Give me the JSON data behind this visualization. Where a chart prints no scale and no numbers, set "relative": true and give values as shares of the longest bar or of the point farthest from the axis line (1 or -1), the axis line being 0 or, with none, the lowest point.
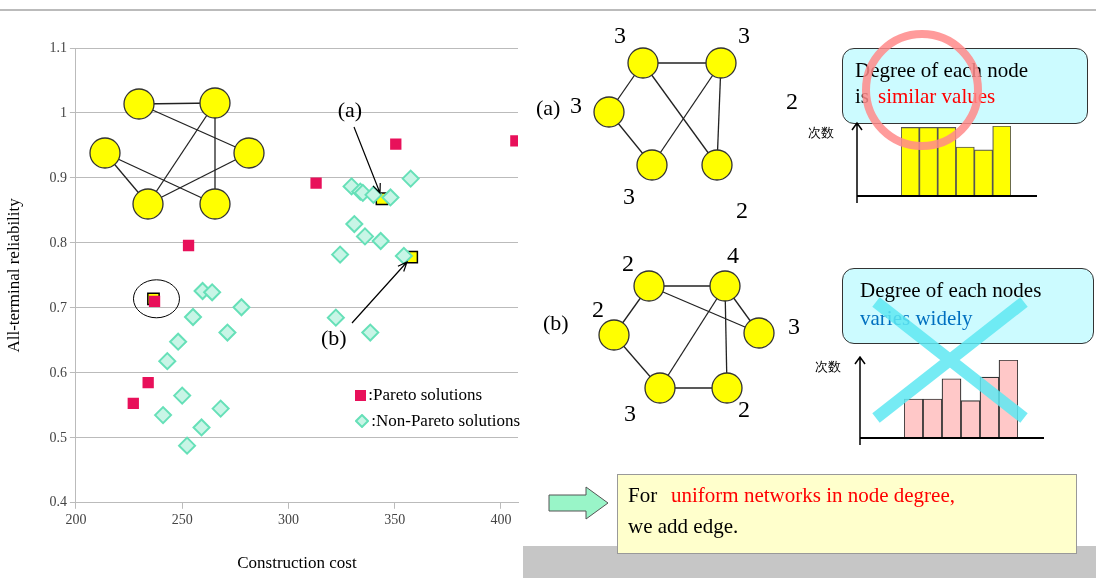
{
  "chart_data": [
    {
      "type": "scatter",
      "xlabel": "Construction cost",
      "ylabel": "All-terminal reliability",
      "xlim": [
        200,
        408
      ],
      "ylim": [
        0.4,
        1.1
      ],
      "xticks": [
        200,
        250,
        300,
        350,
        400
      ],
      "yticks": [
        0.4,
        0.5,
        0.6,
        0.7,
        0.8,
        0.9,
        1,
        1.1
      ],
      "grid": "y",
      "legend": "bottom right",
      "series": [
        {
          "name": ":Pareto solutions",
          "color": "#e8105a",
          "marker": "square",
          "x": [
            227,
            234,
            237,
            253,
            313,
            350.5,
            407
          ],
          "values": [
            0.553,
            0.585,
            0.71,
            0.796,
            0.892,
            0.952,
            0.957
          ]
        },
        {
          "name": ":Non-Pareto solutions",
          "color": "#66e0b8",
          "marker": "diamond",
          "x": [
            329.7,
            333.8,
            335,
            340,
            348,
            357.5,
            331,
            336,
            343.4,
            324.3,
            354.3,
            259.6,
            264.1,
            277.9,
            255.1,
            271.3,
            322.3,
            338.5,
            248.1,
            243,
            250,
            241,
            268.1,
            259.1,
            252.3
          ],
          "values": [
            0.887,
            0.879,
            0.877,
            0.874,
            0.87,
            0.899,
            0.829,
            0.81,
            0.803,
            0.782,
            0.78,
            0.726,
            0.724,
            0.701,
            0.686,
            0.662,
            0.685,
            0.662,
            0.648,
            0.618,
            0.565,
            0.535,
            0.545,
            0.516,
            0.488
          ]
        },
        {
          "color": "#ffff00",
          "marker": "square",
          "x": [
            236.5,
            344,
            358
          ],
          "values": [
            0.714,
            0.868,
            0.778
          ]
        }
      ],
      "annotations": [
        {
          "text": "(a)",
          "x": 344,
          "y": 0.868
        },
        {
          "text": "(b)",
          "x": 358,
          "y": 0.778
        }
      ]
    },
    {
      "type": "bar",
      "relative": true,
      "ylabel": "次数",
      "categories": [
        null,
        null,
        null,
        null,
        null,
        null
      ],
      "values": [
        0.98,
        0.98,
        0.98,
        0.7,
        0.66,
        1
      ],
      "color": "#ffff00"
    },
    {
      "type": "bar",
      "relative": true,
      "ylabel": "次数",
      "categories": [
        null,
        null,
        null,
        null,
        null,
        null
      ],
      "values": [
        0.5,
        0.5,
        0.76,
        0.48,
        0.78,
        1
      ],
      "color": "#ffc8c8"
    },
    {
      "type": "other",
      "annotations": [
        "(a)",
        "3",
        "3",
        "3",
        "2",
        "3",
        "2",
        "Degree of each node",
        "is",
        "similar values",
        "(b)",
        "2",
        "4",
        "2",
        "3",
        "3",
        "2",
        "Degree of each nodes",
        "varies widely",
        "For",
        "uniform networks in node degree,",
        "we add edge."
      ]
    }
  ]
}
